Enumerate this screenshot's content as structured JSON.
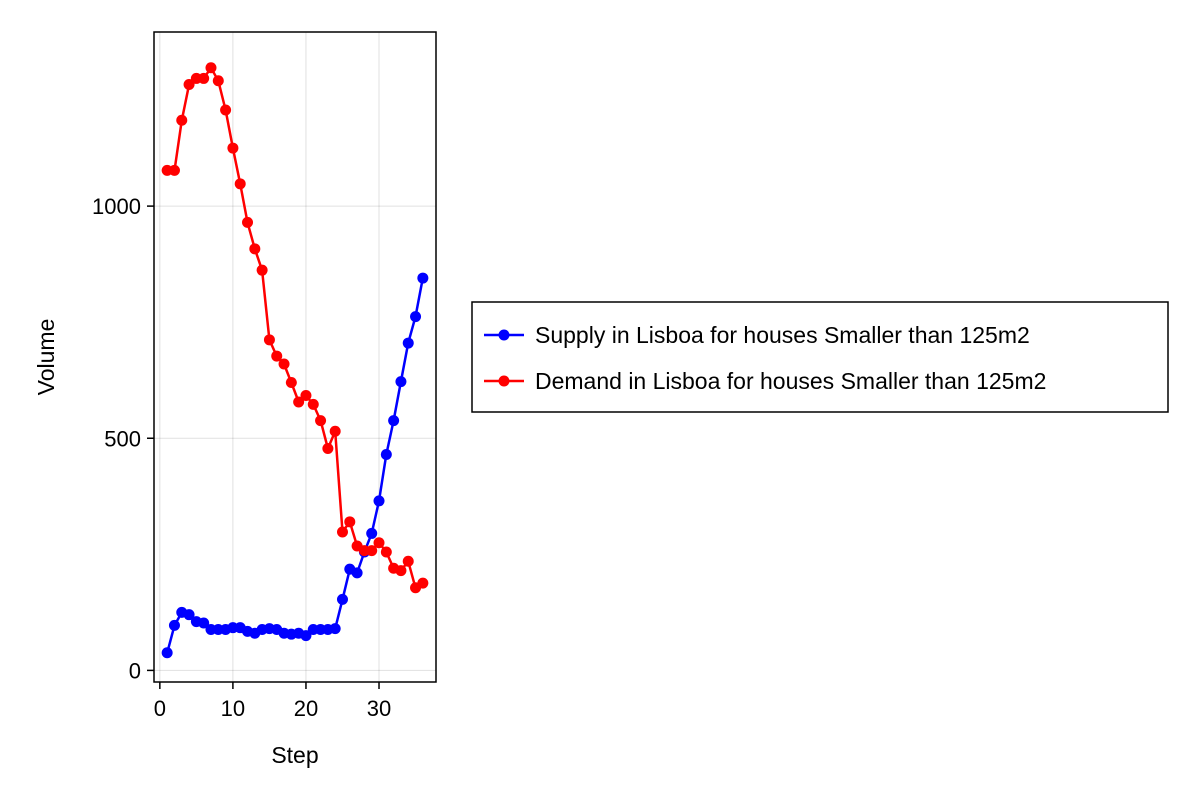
{
  "chart_data": {
    "type": "line",
    "title": "",
    "xlabel": "Step",
    "ylabel": "Volume",
    "xlim": [
      -0.8,
      37.8
    ],
    "ylim": [
      -25,
      1375
    ],
    "xticks": [
      0,
      10,
      20,
      30
    ],
    "yticks": [
      0,
      500,
      1000
    ],
    "grid": true,
    "legend_position": "right",
    "x": [
      1,
      2,
      3,
      4,
      5,
      6,
      7,
      8,
      9,
      10,
      11,
      12,
      13,
      14,
      15,
      16,
      17,
      18,
      19,
      20,
      21,
      22,
      23,
      24,
      25,
      26,
      27,
      28,
      29,
      30,
      31,
      32,
      33,
      34,
      35,
      36
    ],
    "series": [
      {
        "name": "Supply in Lisboa for houses Smaller than 125m2",
        "color": "#0000ff",
        "values": [
          38,
          97,
          125,
          120,
          105,
          102,
          88,
          88,
          88,
          92,
          92,
          84,
          80,
          88,
          90,
          88,
          80,
          78,
          80,
          75,
          88,
          88,
          88,
          90,
          153,
          218,
          210,
          255,
          295,
          365,
          465,
          538,
          622,
          705,
          762,
          845
        ]
      },
      {
        "name": "Demand in Lisboa for houses Smaller than 125m2",
        "color": "#ff0000",
        "values": [
          1077,
          1077,
          1185,
          1262,
          1275,
          1275,
          1298,
          1270,
          1207,
          1125,
          1048,
          965,
          908,
          862,
          712,
          677,
          660,
          620,
          578,
          592,
          573,
          538,
          478,
          515,
          298,
          320,
          268,
          258,
          258,
          275,
          255,
          220,
          215,
          235,
          178,
          188
        ]
      }
    ]
  }
}
